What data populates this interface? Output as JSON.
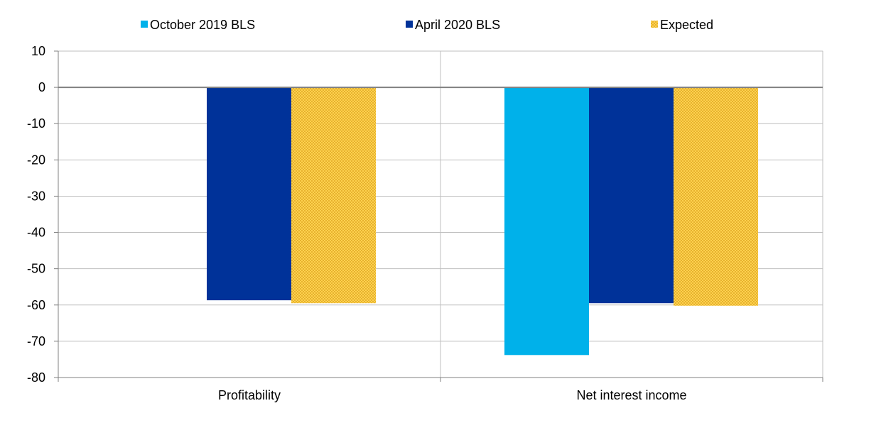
{
  "chart_data": {
    "type": "bar",
    "title": "",
    "xlabel": "",
    "ylabel": "",
    "categories": [
      "Profitability",
      "Net interest income"
    ],
    "series": [
      {
        "name": "October 2019 BLS",
        "color": "#00b1ea",
        "pattern": "solid",
        "values": [
          null,
          -73.8
        ]
      },
      {
        "name": "April 2020 BLS",
        "color": "#003299",
        "pattern": "solid",
        "values": [
          -58.7,
          -59.5
        ]
      },
      {
        "name": "Expected",
        "color": "#fdd24f",
        "pattern": "dotted",
        "values": [
          -59.5,
          -60.2
        ]
      }
    ],
    "ylim": [
      -80,
      10
    ],
    "yticks": [
      10,
      0,
      -10,
      -20,
      -30,
      -40,
      -50,
      -60,
      -70,
      -80
    ],
    "grid": true,
    "legend": "top"
  }
}
